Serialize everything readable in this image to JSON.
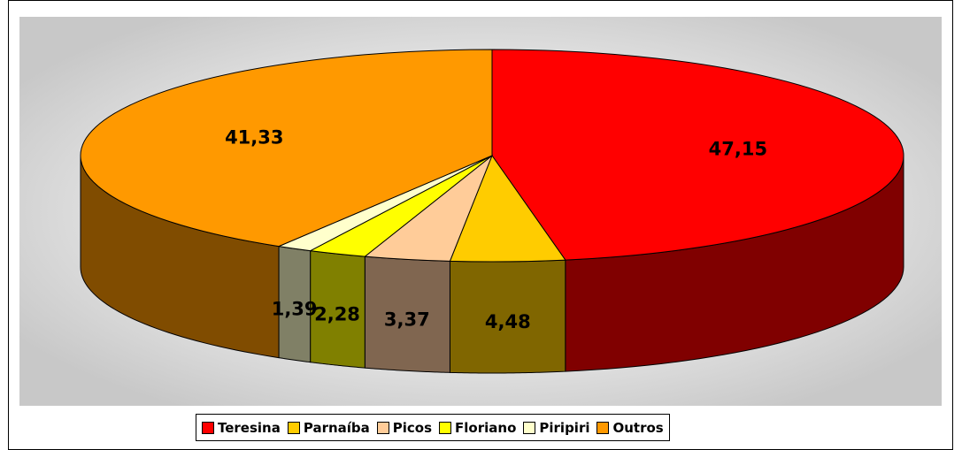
{
  "chart_data": {
    "type": "pie",
    "categories": [
      "Teresina",
      "Parnaíba",
      "Picos",
      "Floriano",
      "Piripiri",
      "Outros"
    ],
    "values": [
      47.15,
      4.48,
      3.37,
      2.28,
      1.39,
      41.33
    ],
    "value_labels": [
      "47,15",
      "4,48",
      "3,37",
      "2,28",
      "1,39",
      "41,33"
    ],
    "colors": [
      "#ff0000",
      "#ffcc00",
      "#ffcc99",
      "#ffff00",
      "#ffffcc",
      "#ff9900"
    ],
    "side_colors": [
      "#800000",
      "#806600",
      "#806650",
      "#808000",
      "#808066",
      "#804c00"
    ],
    "legend": "bottom"
  }
}
